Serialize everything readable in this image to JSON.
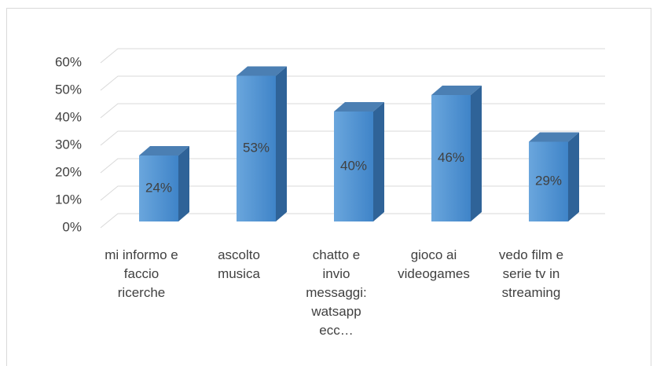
{
  "chart_data": {
    "type": "bar3d",
    "categories": [
      "mi informo e faccio ricerche",
      "ascolto musica",
      "chatto e invio messaggi: watsapp ecc…",
      "gioco ai videogames",
      "vedo film e serie tv in streaming"
    ],
    "values": [
      24,
      53,
      40,
      46,
      29
    ],
    "value_labels": [
      "24%",
      "53%",
      "40%",
      "46%",
      "29%"
    ],
    "color": "#5b9bd5",
    "ylim": [
      0,
      60
    ],
    "yticks": [
      {
        "value": 0,
        "label": "0%"
      },
      {
        "value": 10,
        "label": "10%"
      },
      {
        "value": 20,
        "label": "20%"
      },
      {
        "value": 30,
        "label": "30%"
      },
      {
        "value": 40,
        "label": "40%"
      },
      {
        "value": 50,
        "label": "50%"
      },
      {
        "value": 60,
        "label": "60%"
      }
    ],
    "grid": true
  }
}
